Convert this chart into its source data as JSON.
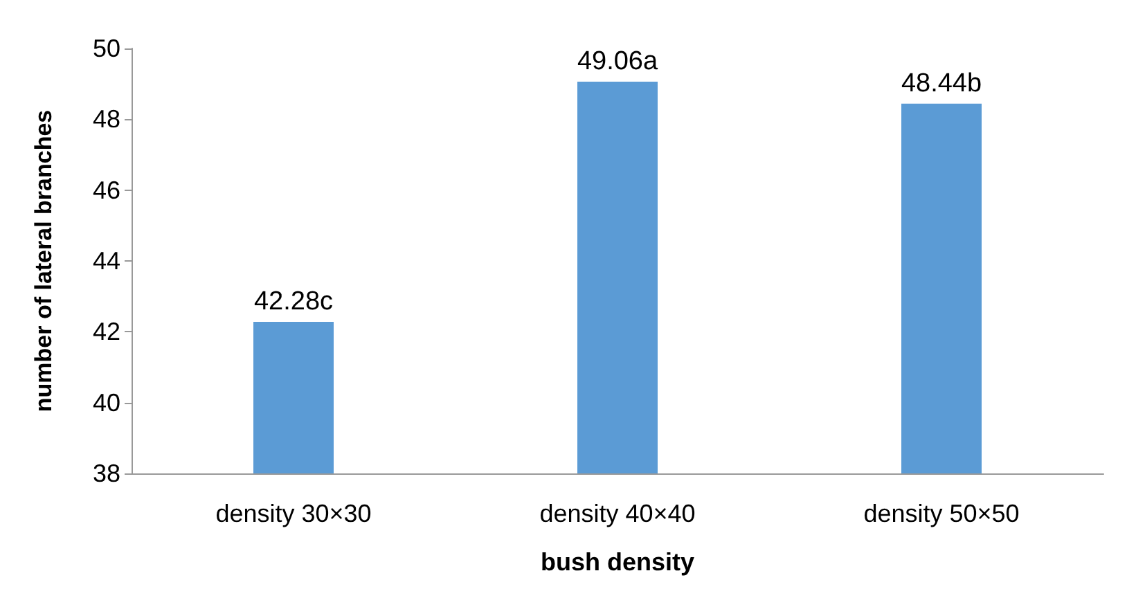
{
  "chart_data": {
    "type": "bar",
    "xlabel": "bush density",
    "ylabel": "number of lateral branches",
    "categories": [
      "density 30×30",
      "density 40×40",
      "density 50×50"
    ],
    "values": [
      42.28,
      49.06,
      48.44
    ],
    "value_labels": [
      "42.28c",
      "49.06a",
      "48.44b"
    ],
    "color": "#5b9bd5",
    "ylim": [
      38,
      50
    ],
    "yticks": [
      38,
      40,
      42,
      44,
      46,
      48,
      50
    ],
    "grid": false
  }
}
